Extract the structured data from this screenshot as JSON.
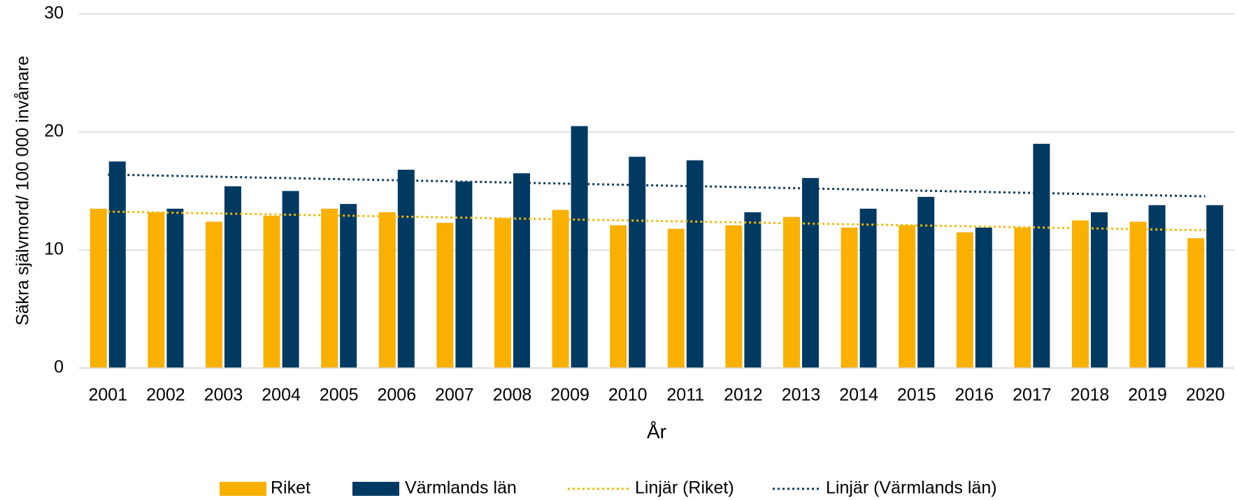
{
  "chart_data": {
    "type": "bar",
    "ylabel": "Säkra självmord/ 100 000 invånare",
    "xlabel": "År",
    "categories": [
      "2001",
      "2002",
      "2003",
      "2004",
      "2005",
      "2006",
      "2007",
      "2008",
      "2009",
      "2010",
      "2011",
      "2012",
      "2013",
      "2014",
      "2015",
      "2016",
      "2017",
      "2018",
      "2019",
      "2020"
    ],
    "series": [
      {
        "name": "Riket",
        "color": "#f9b000",
        "values": [
          13.5,
          13.2,
          12.4,
          12.9,
          13.5,
          13.2,
          12.3,
          12.7,
          13.4,
          12.1,
          11.8,
          12.1,
          12.8,
          11.9,
          12.1,
          11.5,
          11.9,
          12.5,
          12.4,
          11.0
        ]
      },
      {
        "name": "Värmlands län",
        "color": "#003a63",
        "values": [
          17.5,
          13.5,
          15.4,
          15.0,
          13.9,
          16.8,
          15.8,
          16.5,
          20.5,
          17.9,
          17.6,
          13.2,
          16.1,
          13.5,
          14.5,
          11.9,
          19.0,
          13.2,
          13.8,
          13.8
        ]
      }
    ],
    "trendlines": [
      {
        "name": "Linjär (Riket)",
        "color": "#f5b800"
      },
      {
        "name": "Linjär (Värmlands län)",
        "color": "#0e3c5e"
      }
    ],
    "ylim": [
      0,
      30
    ],
    "yticks": [
      0,
      10,
      20,
      30
    ],
    "grid": true
  }
}
